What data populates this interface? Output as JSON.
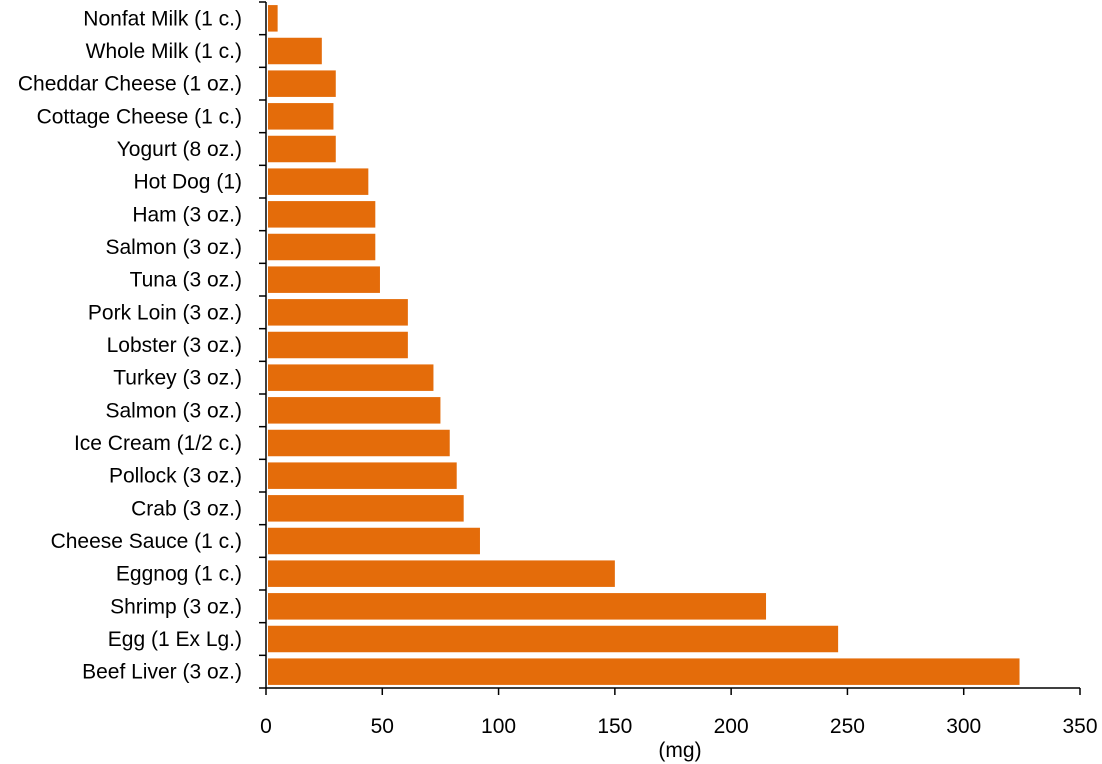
{
  "chart_data": {
    "type": "bar",
    "orientation": "horizontal",
    "categories": [
      "Nonfat Milk (1 c.)",
      "Whole Milk (1 c.)",
      "Cheddar Cheese (1 oz.)",
      "Cottage Cheese (1 c.)",
      "Yogurt (8 oz.)",
      "Hot Dog (1)",
      "Ham (3 oz.)",
      "Salmon (3 oz.)",
      "Tuna (3 oz.)",
      "Pork Loin (3 oz.)",
      "Lobster (3 oz.)",
      "Turkey (3 oz.)",
      "Salmon (3 oz.)",
      "Ice Cream (1/2 c.)",
      "Pollock (3 oz.)",
      "Crab (3 oz.)",
      "Cheese Sauce (1 c.)",
      "Eggnog (1 c.)",
      "Shrimp (3 oz.)",
      "Egg (1 Ex Lg.)",
      "Beef Liver (3 oz.)"
    ],
    "values": [
      5,
      24,
      30,
      29,
      30,
      44,
      47,
      47,
      49,
      61,
      61,
      72,
      75,
      79,
      82,
      85,
      92,
      150,
      215,
      246,
      324
    ],
    "xlabel": "(mg)",
    "ylabel": "",
    "title": "",
    "xlim": [
      0,
      350
    ],
    "xticks": [
      "0",
      "50",
      "100",
      "150",
      "200",
      "250",
      "300",
      "350"
    ],
    "grid": false,
    "legend": false,
    "bar_color": "#E46C0A"
  }
}
